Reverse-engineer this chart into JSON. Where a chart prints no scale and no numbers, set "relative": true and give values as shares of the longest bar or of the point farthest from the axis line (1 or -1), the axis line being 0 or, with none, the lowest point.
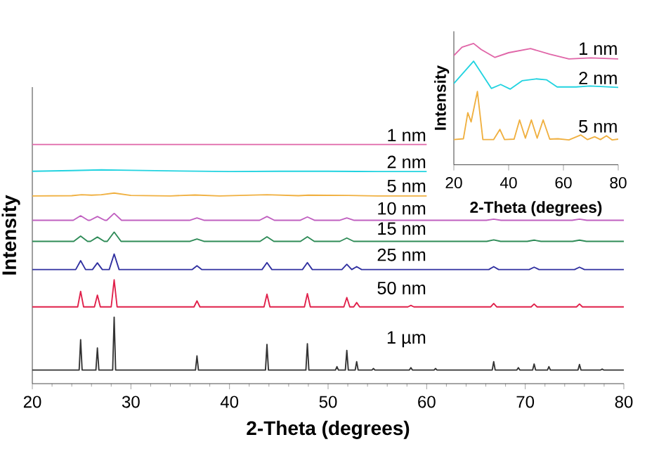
{
  "chart_data": [
    {
      "type": "line",
      "relative": true,
      "xlabel": "2-Theta (degrees)",
      "ylabel": "Intensity",
      "xlim": [
        20,
        80
      ],
      "xticks": [
        20,
        {
          "value": 22,
          "label": null
        },
        {
          "value": 24,
          "label": null
        },
        {
          "value": 26,
          "label": null
        },
        {
          "value": 28,
          "label": null
        },
        30,
        {
          "value": 32,
          "label": null
        },
        {
          "value": 34,
          "label": null
        },
        {
          "value": 36,
          "label": null
        },
        {
          "value": 38,
          "label": null
        },
        40,
        {
          "value": 42,
          "label": null
        },
        {
          "value": 44,
          "label": null
        },
        {
          "value": 46,
          "label": null
        },
        {
          "value": 48,
          "label": null
        },
        50,
        {
          "value": 52,
          "label": null
        },
        {
          "value": 54,
          "label": null
        },
        {
          "value": 56,
          "label": null
        },
        {
          "value": 58,
          "label": null
        },
        60,
        {
          "value": 62,
          "label": null
        },
        {
          "value": 64,
          "label": null
        },
        {
          "value": 66,
          "label": null
        },
        {
          "value": 68,
          "label": null
        },
        70,
        {
          "value": 72,
          "label": null
        },
        {
          "value": 74,
          "label": null
        },
        {
          "value": 76,
          "label": null
        },
        {
          "value": 78,
          "label": null
        },
        80
      ],
      "series": [
        {
          "name": "1 nm",
          "color": "#e066a8",
          "x": [
            20,
            60
          ],
          "values": [
            1,
            1
          ]
        },
        {
          "name": "2 nm",
          "color": "#22d3e0",
          "x": [
            20,
            24,
            27,
            30,
            35,
            40,
            45,
            50,
            55,
            60
          ],
          "values": [
            0.888,
            0.891,
            0.894,
            0.892,
            0.889,
            0.887,
            0.888,
            0.888,
            0.887,
            0.887
          ]
        },
        {
          "name": "5 nm",
          "color": "#f0b040",
          "x": [
            20,
            24,
            25,
            26,
            27,
            28.3,
            30,
            34,
            36.5,
            39,
            43.8,
            47,
            48,
            52,
            55,
            60
          ],
          "values": [
            0.785,
            0.786,
            0.79,
            0.788,
            0.79,
            0.797,
            0.787,
            0.785,
            0.789,
            0.785,
            0.79,
            0.786,
            0.788,
            0.787,
            0.785,
            0.785
          ]
        },
        {
          "name": "10 nm",
          "color": "#c060c0",
          "x": [
            20,
            24.15,
            24.9,
            25.65,
            25.85,
            26.6,
            27.35,
            27.55,
            28.3,
            29.05,
            35.95,
            36.7,
            37.45,
            43.05,
            43.8,
            44.55,
            47.15,
            47.9,
            48.65,
            51.15,
            51.9,
            52.65,
            66.05,
            66.8,
            67.55,
            74.75,
            75.5,
            76.25,
            80
          ],
          "values": [
            0.683,
            0.683,
            0.702,
            0.683,
            0.683,
            0.699,
            0.683,
            0.683,
            0.712,
            0.683,
            0.683,
            0.693,
            0.683,
            0.683,
            0.699,
            0.683,
            0.683,
            0.697,
            0.683,
            0.683,
            0.693,
            0.683,
            0.683,
            0.688,
            0.683,
            0.683,
            0.688,
            0.683,
            0.683
          ]
        },
        {
          "name": "15 nm",
          "color": "#2e8b57",
          "x": [
            20,
            24.2,
            24.9,
            25.6,
            25.9,
            26.6,
            27.3,
            27.6,
            28.3,
            29.0,
            36.0,
            36.7,
            37.4,
            43.1,
            43.8,
            44.5,
            47.2,
            47.9,
            48.6,
            51.2,
            51.9,
            52.6,
            66.1,
            66.8,
            67.5,
            70.2,
            70.9,
            71.6,
            74.8,
            75.5,
            76.2,
            80
          ],
          "values": [
            0.595,
            0.595,
            0.617,
            0.595,
            0.595,
            0.613,
            0.595,
            0.595,
            0.634,
            0.595,
            0.595,
            0.605,
            0.595,
            0.595,
            0.614,
            0.595,
            0.595,
            0.614,
            0.595,
            0.595,
            0.609,
            0.595,
            0.595,
            0.601,
            0.595,
            0.595,
            0.6,
            0.595,
            0.595,
            0.6,
            0.595,
            0.595
          ]
        },
        {
          "name": "25 nm",
          "color": "#3030a0",
          "x": [
            20,
            24.4,
            24.9,
            25.4,
            26.1,
            26.6,
            27.1,
            27.8,
            28.3,
            28.8,
            36.2,
            36.7,
            37.2,
            43.3,
            43.8,
            44.3,
            47.4,
            47.9,
            48.4,
            51.4,
            51.9,
            52.4,
            52.9,
            53.4,
            66.3,
            66.8,
            67.3,
            70.4,
            70.9,
            71.4,
            75.0,
            75.5,
            76.0,
            80
          ],
          "values": [
            0.477,
            0.477,
            0.514,
            0.477,
            0.477,
            0.505,
            0.477,
            0.477,
            0.542,
            0.477,
            0.477,
            0.493,
            0.477,
            0.477,
            0.506,
            0.477,
            0.477,
            0.506,
            0.477,
            0.477,
            0.499,
            0.477,
            0.489,
            0.477,
            0.477,
            0.489,
            0.477,
            0.477,
            0.487,
            0.477,
            0.477,
            0.487,
            0.477,
            0.477
          ]
        },
        {
          "name": "50 nm",
          "color": "#e0204a",
          "x": [
            20,
            24.6,
            24.9,
            25.2,
            26.3,
            26.6,
            26.9,
            28.0,
            28.3,
            28.6,
            36.4,
            36.7,
            37.0,
            43.5,
            43.8,
            44.1,
            47.6,
            47.9,
            48.2,
            51.6,
            51.9,
            52.2,
            52.6,
            52.9,
            53.2,
            58.1,
            58.4,
            58.7,
            66.5,
            66.8,
            67.1,
            70.6,
            70.9,
            71.2,
            75.2,
            75.5,
            75.8,
            80
          ],
          "values": [
            0.321,
            0.321,
            0.386,
            0.321,
            0.321,
            0.37,
            0.321,
            0.321,
            0.434,
            0.321,
            0.321,
            0.346,
            0.321,
            0.321,
            0.374,
            0.321,
            0.321,
            0.376,
            0.321,
            0.321,
            0.36,
            0.321,
            0.321,
            0.339,
            0.321,
            0.321,
            0.327,
            0.321,
            0.321,
            0.335,
            0.321,
            0.321,
            0.333,
            0.321,
            0.321,
            0.333,
            0.321,
            0.321
          ]
        },
        {
          "name": "1 µm",
          "color": "#333333",
          "x": [
            20,
            24.75,
            24.9,
            25.05,
            26.45,
            26.6,
            26.75,
            28.15,
            28.3,
            28.45,
            36.55,
            36.7,
            36.85,
            43.65,
            43.8,
            43.95,
            47.75,
            47.9,
            48.05,
            50.75,
            50.9,
            51.05,
            51.75,
            51.9,
            52.05,
            52.75,
            52.9,
            53.05,
            54.45,
            54.6,
            54.75,
            58.25,
            58.4,
            58.55,
            60.75,
            60.9,
            61.05,
            66.65,
            66.8,
            66.95,
            69.15,
            69.3,
            69.45,
            70.75,
            70.9,
            71.05,
            72.25,
            72.4,
            72.55,
            75.35,
            75.5,
            75.65,
            77.65,
            77.8,
            77.95,
            80
          ],
          "values": [
            0.057,
            0.057,
            0.184,
            0.057,
            0.057,
            0.149,
            0.057,
            0.057,
            0.278,
            0.057,
            0.057,
            0.116,
            0.057,
            0.057,
            0.164,
            0.057,
            0.057,
            0.167,
            0.057,
            0.057,
            0.071,
            0.057,
            0.057,
            0.139,
            0.057,
            0.057,
            0.092,
            0.057,
            0.057,
            0.063,
            0.057,
            0.057,
            0.067,
            0.057,
            0.057,
            0.063,
            0.057,
            0.057,
            0.092,
            0.057,
            0.057,
            0.067,
            0.057,
            0.057,
            0.082,
            0.057,
            0.057,
            0.071,
            0.057,
            0.057,
            0.08,
            0.057,
            0.057,
            0.061,
            0.057,
            0.057
          ]
        }
      ]
    },
    {
      "type": "line",
      "relative": true,
      "xlabel": "2-Theta (degrees)",
      "ylabel": "Intensity",
      "xlim": [
        20,
        80
      ],
      "xticks": [
        20,
        40,
        60,
        80
      ],
      "series": [
        {
          "name": "1 nm",
          "color": "#e066a8",
          "x": [
            20,
            23,
            27.2,
            30,
            35,
            40,
            48,
            55,
            62,
            70,
            80
          ],
          "values": [
            0.9,
            0.97,
            1,
            0.95,
            0.885,
            0.924,
            0.958,
            0.912,
            0.873,
            0.881,
            0.873
          ]
        },
        {
          "name": "2 nm",
          "color": "#22d3e0",
          "x": [
            20,
            27.2,
            33.7,
            37.1,
            40.6,
            44.9,
            50,
            53.9,
            57.7,
            64.6,
            69.7,
            80
          ],
          "values": [
            0.67,
            0.854,
            0.63,
            0.662,
            0.624,
            0.693,
            0.708,
            0.7,
            0.642,
            0.642,
            0.65,
            0.638
          ]
        },
        {
          "name": "5 nm",
          "color": "#f0b040",
          "x": [
            20,
            23.5,
            25.1,
            26.3,
            28.6,
            30.6,
            34.5,
            36.8,
            38.5,
            42,
            44,
            46.1,
            48.3,
            50.4,
            52.6,
            55,
            58,
            62,
            66.3,
            68.8,
            71.4,
            73.5,
            75.7,
            77.8,
            80
          ],
          "values": [
            0.208,
            0.215,
            0.43,
            0.354,
            0.604,
            0.208,
            0.208,
            0.292,
            0.208,
            0.212,
            0.37,
            0.22,
            0.37,
            0.22,
            0.37,
            0.212,
            0.215,
            0.205,
            0.246,
            0.208,
            0.231,
            0.208,
            0.239,
            0.205,
            0.212
          ]
        }
      ]
    }
  ]
}
